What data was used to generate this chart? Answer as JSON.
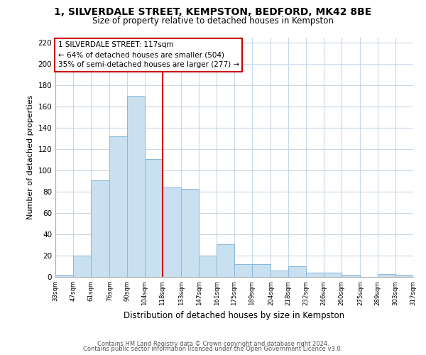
{
  "title_line1": "1, SILVERDALE STREET, KEMPSTON, BEDFORD, MK42 8BE",
  "title_line2": "Size of property relative to detached houses in Kempston",
  "xlabel": "Distribution of detached houses by size in Kempston",
  "ylabel": "Number of detached properties",
  "bar_color": "#c8e0f0",
  "bar_edge_color": "#8ab8d8",
  "vline_x": 118,
  "vline_color": "#cc0000",
  "annotation_title": "1 SILVERDALE STREET: 117sqm",
  "annotation_line2": "← 64% of detached houses are smaller (504)",
  "annotation_line3": "35% of semi-detached houses are larger (277) →",
  "annotation_box_color": "#ffffff",
  "annotation_box_edge": "#cc0000",
  "bin_edges": [
    33,
    47,
    61,
    76,
    90,
    104,
    118,
    133,
    147,
    161,
    175,
    189,
    204,
    218,
    232,
    246,
    260,
    275,
    289,
    303,
    317
  ],
  "bar_heights": [
    2,
    20,
    91,
    132,
    170,
    111,
    84,
    83,
    20,
    31,
    12,
    12,
    6,
    10,
    4,
    4,
    2,
    0,
    3,
    2
  ],
  "ylim": [
    0,
    225
  ],
  "yticks": [
    0,
    20,
    40,
    60,
    80,
    100,
    120,
    140,
    160,
    180,
    200,
    220
  ],
  "footnote_line1": "Contains HM Land Registry data © Crown copyright and database right 2024.",
  "footnote_line2": "Contains public sector information licensed under the Open Government Licence v3.0.",
  "background_color": "#ffffff",
  "grid_color": "#c8d8e8"
}
